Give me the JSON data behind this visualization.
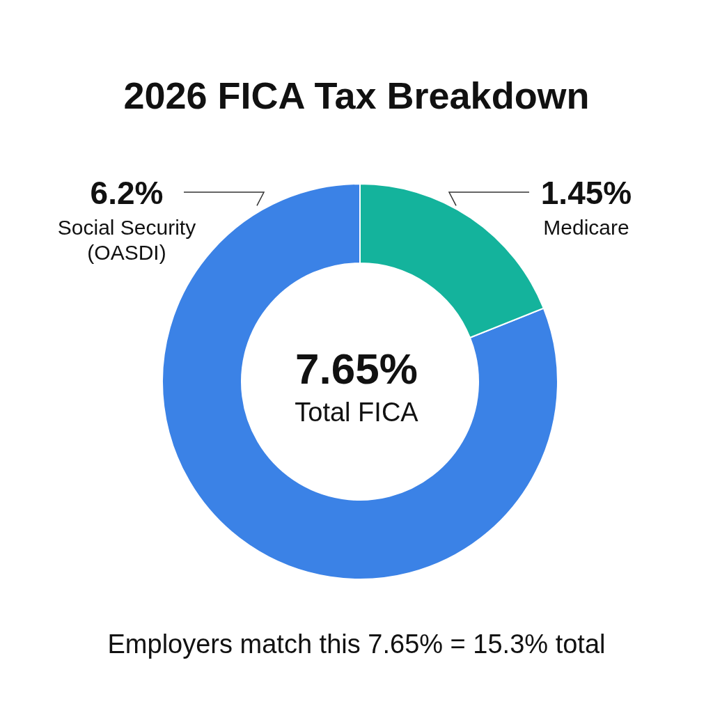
{
  "chart_data": {
    "type": "donut",
    "title": "2026 FICA Tax Breakdown",
    "categories": [
      "Social Security (OASDI)",
      "Medicare"
    ],
    "values": [
      6.2,
      1.45
    ],
    "value_labels": [
      "6.2%",
      "1.45%"
    ],
    "colors": [
      "#3b82e6",
      "#14b39c"
    ],
    "annotations": [
      "7.65%",
      "Total FICA",
      "Employers match this 7.65% = 15.3% total"
    ],
    "legend": false
  }
}
